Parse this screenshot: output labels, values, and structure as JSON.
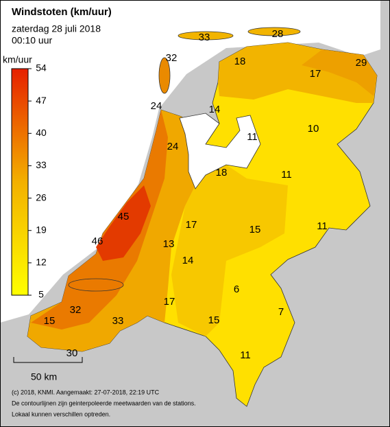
{
  "header": {
    "title": "Windstoten (km/uur)",
    "subtitle": "zaterdag 28 juli 2018",
    "time": "00:10 uur"
  },
  "legend": {
    "title": "km/uur",
    "range": [
      5,
      54
    ],
    "ticks": [
      5,
      12,
      19,
      26,
      33,
      40,
      47,
      54
    ],
    "colors": [
      "#ffff00",
      "#e62000"
    ]
  },
  "stations": [
    33,
    28,
    32,
    18,
    29,
    17,
    24,
    14,
    10,
    11,
    24,
    18,
    11,
    45,
    17,
    15,
    11,
    46,
    13,
    14,
    6,
    7,
    17,
    32,
    33,
    15,
    15,
    30,
    11
  ],
  "scale_bar": "50 km",
  "footer": [
    "(c) 2018, KNMI. Aangemaakt: 27-07-2018, 22:19 UTC",
    "De contourlijnen zijn geinterpoleerde meetwaarden van de stations.",
    "Lokaal kunnen verschillen optreden."
  ]
}
